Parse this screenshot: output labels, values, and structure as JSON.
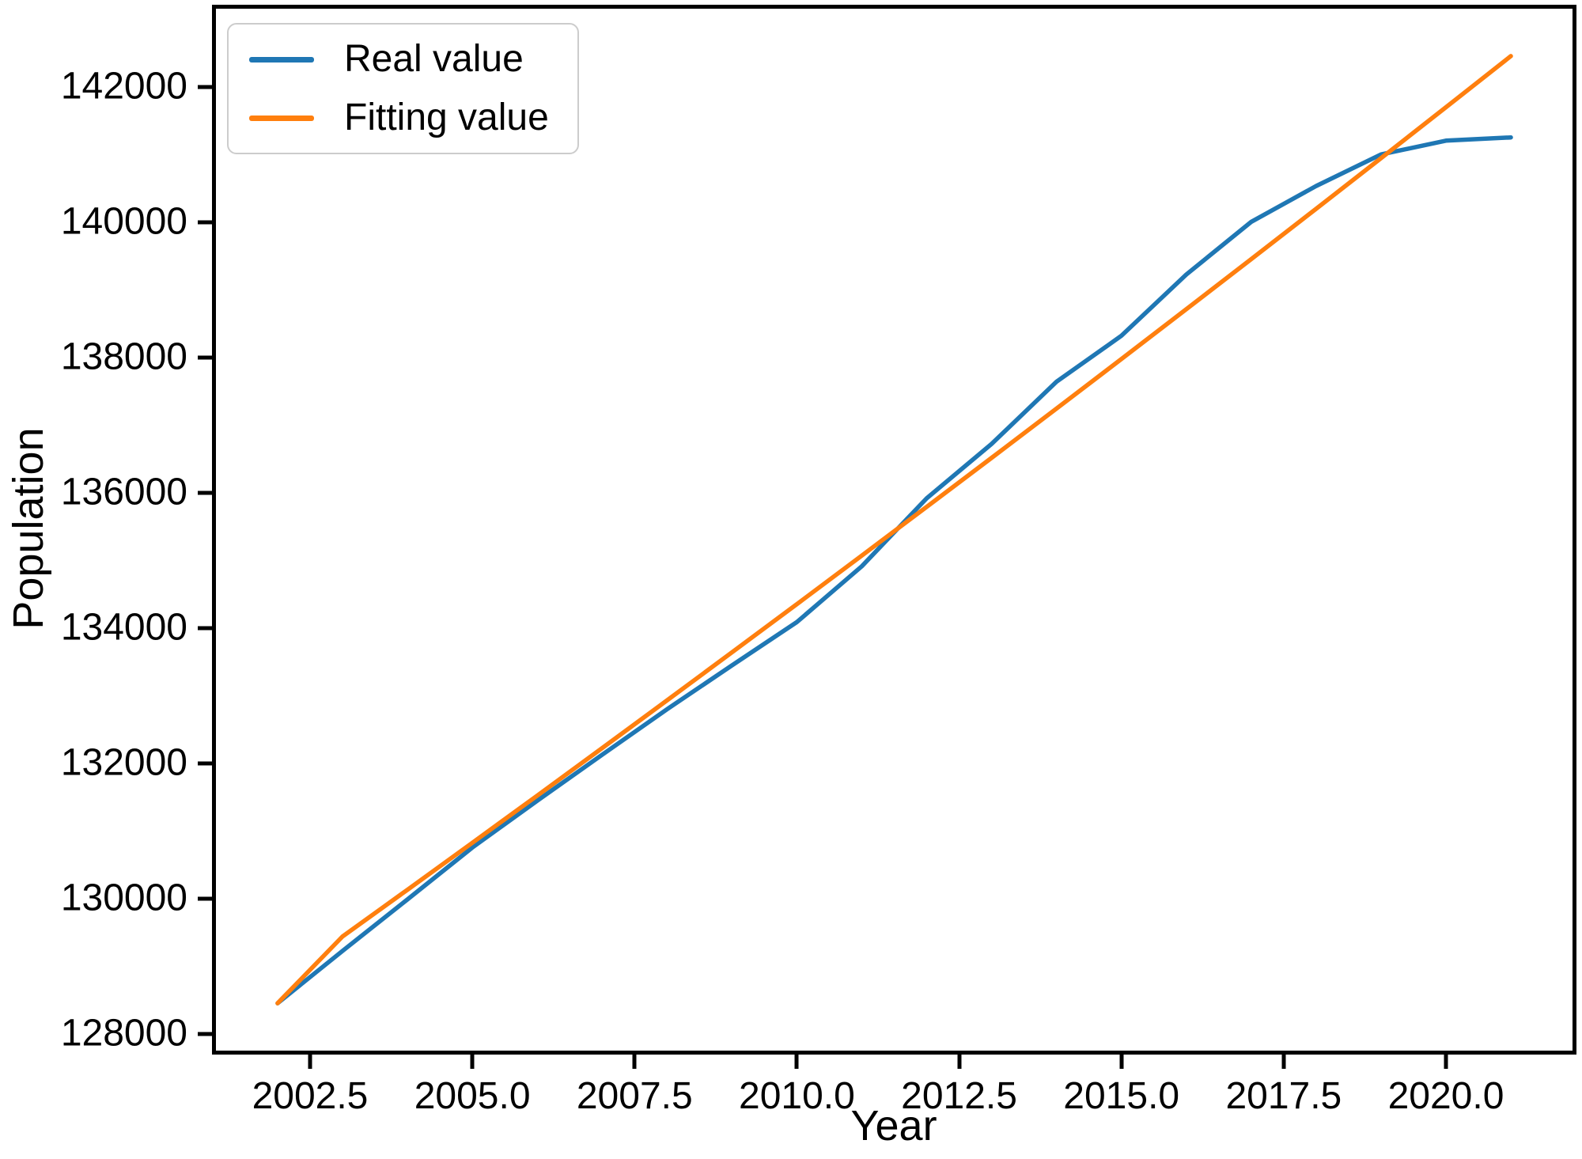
{
  "chart_data": {
    "type": "line",
    "title": "",
    "xlabel": "Year",
    "ylabel": "Population",
    "grid": false,
    "legend_position": "upper left",
    "xlim": [
      2001.05,
      2021.95
    ],
    "ylim": [
      127752,
      143164
    ],
    "x": [
      2002,
      2003,
      2004,
      2005,
      2006,
      2007,
      2008,
      2009,
      2010,
      2011,
      2012,
      2013,
      2014,
      2015,
      2016,
      2017,
      2018,
      2019,
      2020,
      2021
    ],
    "series": [
      {
        "name": "Real value",
        "color": "#1f77b4",
        "values": [
          128453,
          129227,
          129988,
          130756,
          131448,
          132129,
          132802,
          133450,
          134091,
          134916,
          135922,
          136726,
          137646,
          138326,
          139232,
          140011,
          140541,
          141008,
          141212,
          141260
        ]
      },
      {
        "name": "Fitting value",
        "color": "#ff7f0e",
        "values": [
          128453,
          129440,
          130131,
          130826,
          131524,
          132227,
          132933,
          133643,
          134356,
          135074,
          135795,
          136520,
          137249,
          137982,
          138719,
          139460,
          140204,
          140953,
          141706,
          142463
        ]
      }
    ],
    "x_ticks": [
      {
        "value": 2002.5,
        "label": "2002.5"
      },
      {
        "value": 2005.0,
        "label": "2005.0"
      },
      {
        "value": 2007.5,
        "label": "2007.5"
      },
      {
        "value": 2010.0,
        "label": "2010.0"
      },
      {
        "value": 2012.5,
        "label": "2012.5"
      },
      {
        "value": 2015.0,
        "label": "2015.0"
      },
      {
        "value": 2017.5,
        "label": "2017.5"
      },
      {
        "value": 2020.0,
        "label": "2020.0"
      }
    ],
    "y_ticks": [
      {
        "value": 128000,
        "label": "128000"
      },
      {
        "value": 130000,
        "label": "130000"
      },
      {
        "value": 132000,
        "label": "132000"
      },
      {
        "value": 134000,
        "label": "134000"
      },
      {
        "value": 136000,
        "label": "136000"
      },
      {
        "value": 138000,
        "label": "138000"
      },
      {
        "value": 140000,
        "label": "140000"
      },
      {
        "value": 142000,
        "label": "142000"
      }
    ],
    "colors": {
      "spine": "#000000",
      "text": "#000000",
      "legend_border": "#cccccc",
      "background": "#ffffff"
    }
  }
}
